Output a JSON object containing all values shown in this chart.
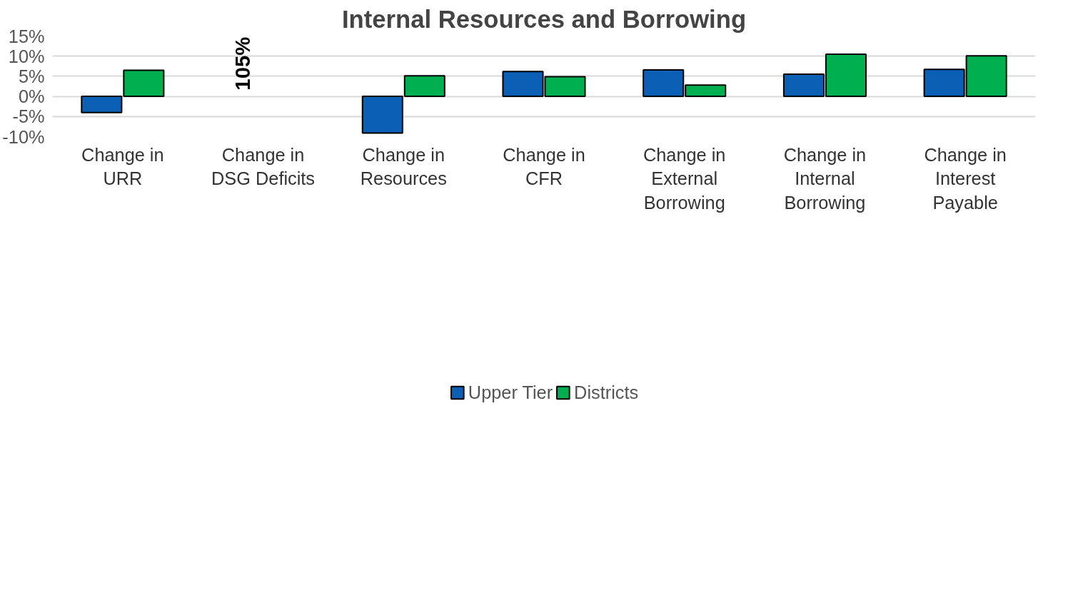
{
  "chart_data": {
    "type": "bar",
    "title": "Internal Resources and Borrowing",
    "categories": [
      "Change in URR",
      "Change in DSG Deficits",
      "Change in Resources",
      "Change in CFR",
      "Change in External Borrowing",
      "Change in Internal Borrowing",
      "Change in Interest Payable"
    ],
    "series": [
      {
        "name": "Upper Tier",
        "color": "#0b5fb5",
        "values": [
          -4.0,
          null,
          -9.1,
          6.2,
          6.6,
          5.5,
          6.7
        ]
      },
      {
        "name": "Districts",
        "color": "#00b050",
        "values": [
          6.5,
          null,
          5.1,
          4.9,
          2.8,
          10.5,
          10.1
        ]
      }
    ],
    "annotations": [
      "105%"
    ],
    "ylim": [
      -10,
      15
    ],
    "yticks": [
      {
        "value": -10,
        "label": "-10%"
      },
      {
        "value": -5,
        "label": "-5%"
      },
      {
        "value": 0,
        "label": "0%"
      },
      {
        "value": 5,
        "label": "5%"
      },
      {
        "value": 10,
        "label": "10%"
      },
      {
        "value": 15,
        "label": "15%"
      }
    ],
    "grid": "y",
    "legend": "bottom"
  }
}
